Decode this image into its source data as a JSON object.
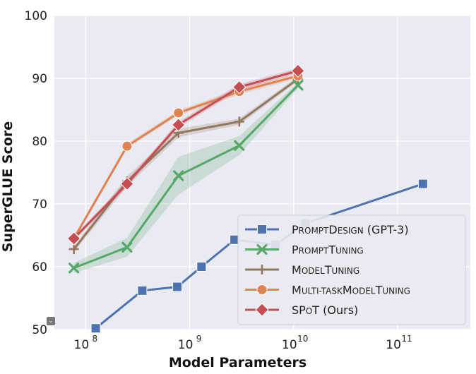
{
  "chart_data": {
    "type": "line",
    "title": "",
    "xlabel": "Model Parameters",
    "ylabel": "SuperGLUE Score",
    "xscale": "log",
    "xlim": [
      50000000,
      500000000000
    ],
    "ylim": [
      50,
      100
    ],
    "grid": true,
    "legend_position": "bottom-right",
    "x_ticks": [
      {
        "value": 100000000,
        "base": "10",
        "exp": "8"
      },
      {
        "value": 1000000000,
        "base": "10",
        "exp": "9"
      },
      {
        "value": 10000000000,
        "base": "10",
        "exp": "10"
      },
      {
        "value": 100000000000,
        "base": "10",
        "exp": "11"
      }
    ],
    "y_ticks": [
      50,
      60,
      70,
      80,
      90,
      100
    ],
    "series": [
      {
        "name": "PromptDesign (GPT-3)",
        "color": "#4c72b0",
        "marker": "square",
        "x": [
          125000000,
          350000000,
          760000000,
          1300000000,
          2700000000,
          6700000000,
          13000000000,
          175000000000
        ],
        "y": [
          50.2,
          56.2,
          56.8,
          60.0,
          64.3,
          63.5,
          66.9,
          73.2
        ]
      },
      {
        "name": "PromptTuning",
        "color": "#55a868",
        "marker": "x",
        "x": [
          77000000,
          250000000,
          780000000,
          3000000000,
          11000000000
        ],
        "y": [
          59.8,
          63.1,
          74.5,
          79.3,
          88.9
        ],
        "band_low": [
          59.0,
          61.6,
          71.5,
          77.8,
          88.4
        ],
        "band_high": [
          60.6,
          64.6,
          77.5,
          80.8,
          89.4
        ]
      },
      {
        "name": "ModelTuning",
        "color": "#937860",
        "marker": "plus",
        "x": [
          77000000,
          250000000,
          780000000,
          3000000000,
          11000000000
        ],
        "y": [
          62.8,
          73.6,
          81.3,
          83.1,
          89.9
        ],
        "band_low": [
          62.3,
          72.8,
          80.6,
          82.6,
          89.5
        ],
        "band_high": [
          63.3,
          74.4,
          82.0,
          83.6,
          90.3
        ]
      },
      {
        "name": "Multi-taskModelTuning",
        "color": "#dd8452",
        "marker": "circle",
        "x": [
          77000000,
          250000000,
          780000000,
          3000000000,
          11000000000
        ],
        "y": [
          64.5,
          79.2,
          84.5,
          87.9,
          90.4
        ],
        "band_low": [
          64.1,
          78.8,
          84.1,
          87.4,
          90.0
        ],
        "band_high": [
          64.9,
          79.6,
          84.9,
          88.4,
          90.8
        ]
      },
      {
        "name": "SPoT (Ours)",
        "color": "#c44e52",
        "marker": "diamond",
        "x": [
          77000000,
          250000000,
          780000000,
          3000000000,
          11000000000
        ],
        "y": [
          64.5,
          73.2,
          82.6,
          88.6,
          91.2
        ],
        "band_low": [
          64.1,
          72.7,
          82.1,
          88.1,
          90.8
        ],
        "band_high": [
          64.9,
          73.7,
          83.1,
          89.1,
          91.6
        ]
      }
    ]
  },
  "legend_labels": [
    {
      "big": "P",
      "small": "ROMPT",
      "big2": "D",
      "small2": "ESIGN",
      "rest": " (GPT-3)"
    },
    {
      "big": "P",
      "small": "ROMPT",
      "big2": "T",
      "small2": "UNING",
      "rest": ""
    },
    {
      "big": "M",
      "small": "ODEL",
      "big2": "T",
      "small2": "UNING",
      "rest": ""
    },
    {
      "big": "M",
      "small": "ULTI-TASK",
      "big2": "M",
      "small2": "ODEL",
      "big3": "T",
      "small3": "UNING",
      "rest": ""
    },
    {
      "big": "SP",
      "small": "O",
      "big2": "T",
      "small2": "",
      "rest": " (Ours)"
    }
  ]
}
